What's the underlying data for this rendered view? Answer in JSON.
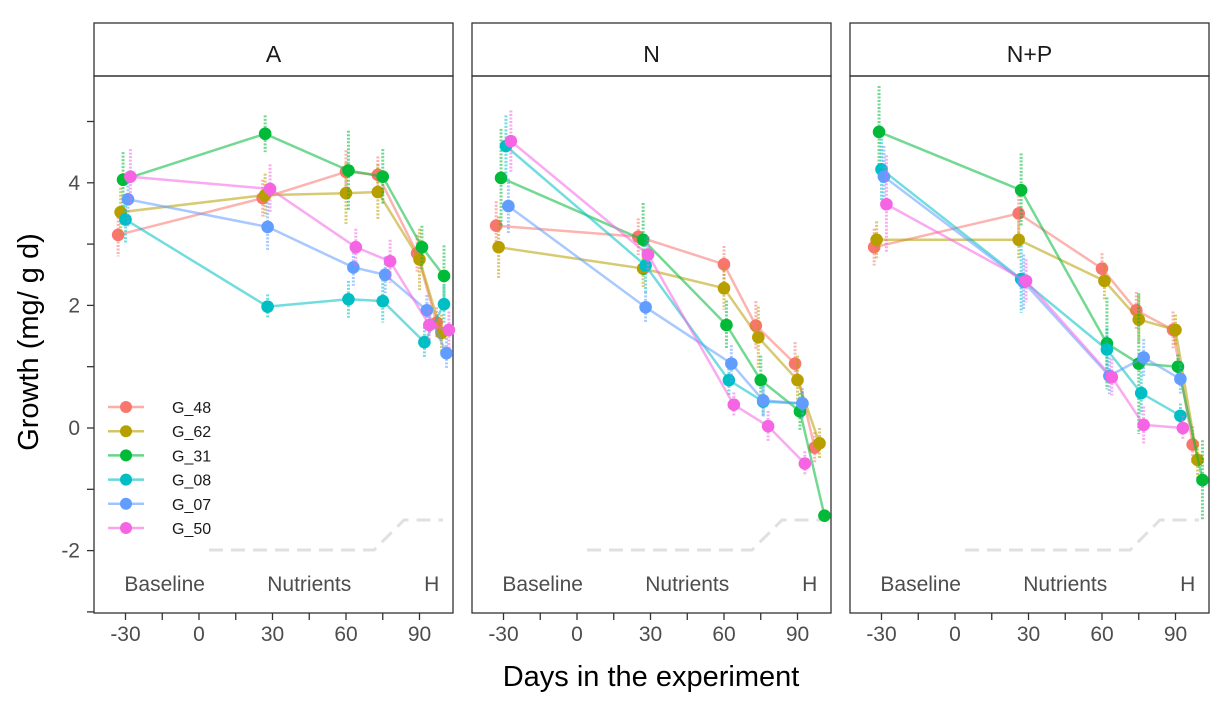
{
  "chart_data": {
    "type": "line",
    "xlabel": "Days in the experiment",
    "ylabel": "Growth (mg/ g d)",
    "xlim": [
      -35,
      107
    ],
    "ylim": [
      -3,
      6.5
    ],
    "x_ticks": [
      -30,
      0,
      30,
      60,
      90
    ],
    "x_tick_labels": [
      "-30",
      "0",
      "30",
      "60",
      "90"
    ],
    "y_ticks": [
      -2,
      0,
      2,
      4
    ],
    "y_tick_labels": [
      "-2",
      "0",
      "2",
      "4"
    ],
    "grid": false,
    "legend_position": "bottom-left inside first panel",
    "phase_labels": [
      {
        "text": "Baseline",
        "x": -14
      },
      {
        "text": "Nutrients",
        "x": 45
      },
      {
        "text": "H",
        "x": 95
      }
    ],
    "colors": {
      "G_48": "#F8766D",
      "G_62": "#B79F00",
      "G_31": "#00BA38",
      "G_08": "#00BFC4",
      "G_07": "#619CFF",
      "G_50": "#F564E3"
    },
    "panels": [
      {
        "label": "A",
        "series": [
          {
            "name": "G_48",
            "points": [
              [
                -33,
                3.15,
                0.35
              ],
              [
                26,
                3.75,
                0.3
              ],
              [
                60,
                4.18,
                0.35
              ],
              [
                73,
                4.13,
                0.3
              ],
              [
                89,
                2.85,
                0.3
              ],
              [
                97,
                1.72,
                0.25
              ]
            ]
          },
          {
            "name": "G_62",
            "points": [
              [
                -32,
                3.52,
                0.4
              ],
              [
                27,
                3.8,
                0.35
              ],
              [
                60,
                3.83,
                0.5
              ],
              [
                73,
                3.85,
                0.45
              ],
              [
                90,
                2.75,
                0.5
              ],
              [
                99,
                1.55,
                0.3
              ]
            ]
          },
          {
            "name": "G_31",
            "points": [
              [
                -31,
                4.05,
                0.45
              ],
              [
                27,
                4.8,
                0.3
              ],
              [
                61,
                4.2,
                0.65
              ],
              [
                75,
                4.1,
                0.45
              ],
              [
                91,
                2.95,
                0.35
              ],
              [
                100,
                2.48,
                0.5
              ]
            ]
          },
          {
            "name": "G_08",
            "points": [
              [
                -30,
                3.4,
                0.4
              ],
              [
                28,
                1.98,
                0.2
              ],
              [
                61,
                2.1,
                0.3
              ],
              [
                75,
                2.07,
                0.35
              ],
              [
                92,
                1.4,
                0.25
              ],
              [
                100,
                2.02,
                0.3
              ]
            ]
          },
          {
            "name": "G_07",
            "points": [
              [
                -29,
                3.73,
                0.45
              ],
              [
                28,
                3.28,
                0.4
              ],
              [
                63,
                2.62,
                0.3
              ],
              [
                76,
                2.5,
                0.3
              ],
              [
                93,
                1.92,
                0.25
              ],
              [
                101,
                1.22,
                0.25
              ]
            ]
          },
          {
            "name": "G_50",
            "points": [
              [
                -28,
                4.1,
                0.45
              ],
              [
                29,
                3.9,
                0.4
              ],
              [
                64,
                2.95,
                0.3
              ],
              [
                78,
                2.72,
                0.35
              ],
              [
                94,
                1.68,
                0.25
              ],
              [
                102,
                1.6,
                0.3
              ]
            ]
          }
        ]
      },
      {
        "label": "N",
        "series": [
          {
            "name": "G_48",
            "points": [
              [
                -33,
                3.3,
                0.4
              ],
              [
                25,
                3.12,
                0.3
              ],
              [
                60,
                2.67,
                0.3
              ],
              [
                73,
                1.67,
                0.4
              ],
              [
                89,
                1.05,
                0.35
              ],
              [
                97,
                -0.32,
                0.25
              ]
            ]
          },
          {
            "name": "G_62",
            "points": [
              [
                -32,
                2.95,
                0.5
              ],
              [
                27,
                2.6,
                0.3
              ],
              [
                60,
                2.28,
                0.35
              ],
              [
                74,
                1.48,
                0.5
              ],
              [
                90,
                0.78,
                0.4
              ],
              [
                99,
                -0.25,
                0.25
              ]
            ]
          },
          {
            "name": "G_31",
            "points": [
              [
                -31,
                4.08,
                0.8
              ],
              [
                27,
                3.07,
                0.6
              ],
              [
                61,
                1.68,
                0.4
              ],
              [
                75,
                0.78,
                0.4
              ],
              [
                91,
                0.27,
                0.3
              ],
              [
                101,
                -1.43,
                0.1
              ]
            ]
          },
          {
            "name": "G_08",
            "points": [
              [
                -29,
                4.6,
                0.5
              ],
              [
                28,
                2.65,
                0.45
              ],
              [
                62,
                0.78,
                0.25
              ],
              [
                76,
                0.43,
                0.25
              ],
              [
                92,
                0.4,
                0.2
              ]
            ]
          },
          {
            "name": "G_07",
            "points": [
              [
                -28,
                3.62,
                0.45
              ],
              [
                28,
                1.97,
                0.25
              ],
              [
                63,
                1.05,
                0.3
              ],
              [
                76,
                0.45,
                0.25
              ],
              [
                92,
                0.4,
                0.25
              ]
            ]
          },
          {
            "name": "G_50",
            "points": [
              [
                -27,
                4.68,
                0.5
              ],
              [
                29,
                2.83,
                0.3
              ],
              [
                64,
                0.38,
                0.2
              ],
              [
                78,
                0.03,
                0.25
              ],
              [
                93,
                -0.58,
                0.2
              ]
            ]
          }
        ]
      },
      {
        "label": "N+P",
        "series": [
          {
            "name": "G_48",
            "points": [
              [
                -33,
                2.95,
                0.3
              ],
              [
                26,
                3.5,
                0.35
              ],
              [
                60,
                2.6,
                0.25
              ],
              [
                74,
                1.92,
                0.3
              ],
              [
                89,
                1.6,
                0.3
              ],
              [
                97,
                -0.27,
                0.3
              ]
            ]
          },
          {
            "name": "G_62",
            "points": [
              [
                -32,
                3.07,
                0.3
              ],
              [
                26,
                3.07,
                0.3
              ],
              [
                61,
                2.4,
                0.3
              ],
              [
                75,
                1.77,
                0.4
              ],
              [
                90,
                1.6,
                0.25
              ],
              [
                99,
                -0.52,
                0.3
              ]
            ]
          },
          {
            "name": "G_31",
            "points": [
              [
                -31,
                4.83,
                0.75
              ],
              [
                27,
                3.88,
                0.6
              ],
              [
                62,
                1.38,
                0.75
              ],
              [
                75,
                1.05,
                1.15
              ],
              [
                91,
                1.0,
                0.2
              ],
              [
                101,
                -0.85,
                0.65
              ]
            ]
          },
          {
            "name": "G_08",
            "points": [
              [
                -30,
                4.22,
                0.5
              ],
              [
                27,
                2.43,
                0.55
              ],
              [
                62,
                1.28,
                0.35
              ],
              [
                76,
                0.57,
                0.35
              ],
              [
                92,
                0.2,
                0.2
              ]
            ]
          },
          {
            "name": "G_07",
            "points": [
              [
                -29,
                4.1,
                0.5
              ],
              [
                28,
                2.38,
                0.45
              ],
              [
                63,
                0.85,
                0.3
              ],
              [
                77,
                1.15,
                0.3
              ],
              [
                92,
                0.8,
                0.25
              ]
            ]
          },
          {
            "name": "G_50",
            "points": [
              [
                -28,
                3.65,
                0.8
              ],
              [
                29,
                2.4,
                0.35
              ],
              [
                64,
                0.83,
                0.3
              ],
              [
                77,
                0.05,
                0.3
              ],
              [
                93,
                0.0,
                0.2
              ]
            ]
          }
        ]
      }
    ]
  }
}
